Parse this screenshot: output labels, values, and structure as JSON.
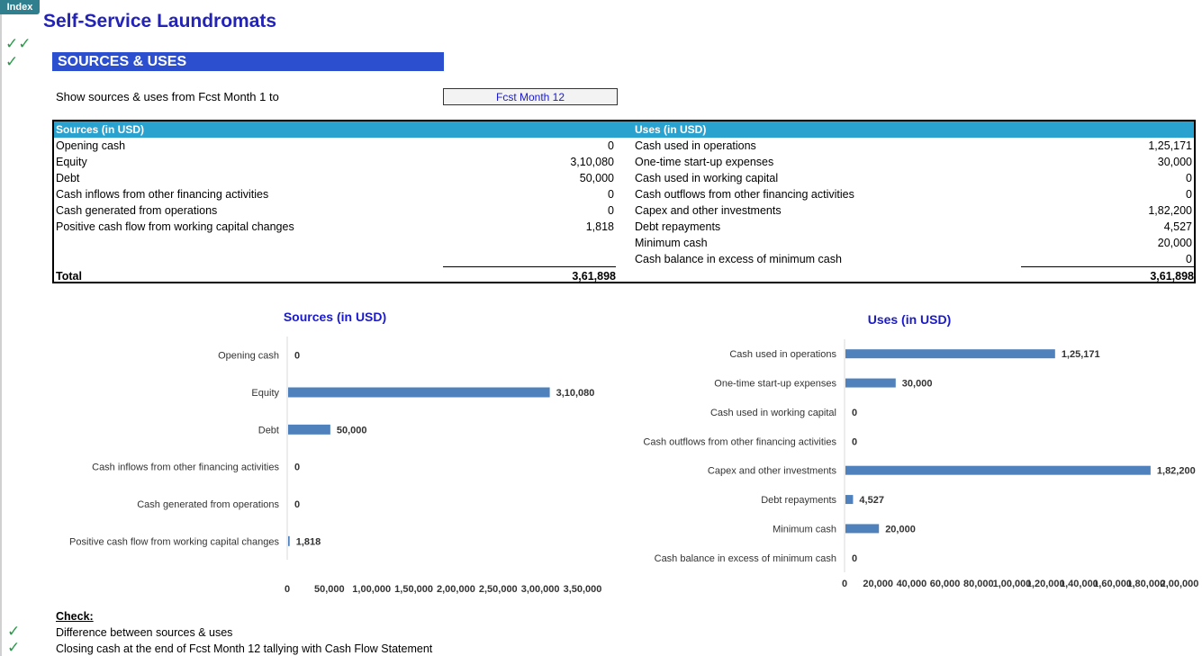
{
  "index_tab": "Index",
  "title": "Self-Service Laundromats",
  "section": "SOURCES & USES",
  "period": {
    "label": "Show sources & uses from Fcst Month 1 to",
    "value": "Fcst Month 12"
  },
  "colors": {
    "header_bar": "#2aa2cf",
    "section_bar": "#2c4fd0",
    "bar": "#4f81bd",
    "title": "#2323b6",
    "tick": "#2a9a4a"
  },
  "sources": {
    "header": "Sources (in USD)",
    "rows": [
      {
        "label": "Opening cash",
        "value": "0"
      },
      {
        "label": "Equity",
        "value": "3,10,080"
      },
      {
        "label": "Debt",
        "value": "50,000"
      },
      {
        "label": "Cash inflows from other financing activities",
        "value": "0"
      },
      {
        "label": "Cash generated from operations",
        "value": "0"
      },
      {
        "label": "Positive cash flow from working capital changes",
        "value": "1,818"
      }
    ],
    "total_label": "Total",
    "total_value": "3,61,898"
  },
  "uses": {
    "header": "Uses (in USD)",
    "rows": [
      {
        "label": "Cash used in operations",
        "value": "1,25,171"
      },
      {
        "label": "One-time start-up expenses",
        "value": "30,000"
      },
      {
        "label": "Cash used in working capital",
        "value": "0"
      },
      {
        "label": "Cash outflows from other  financing activities",
        "value": "0"
      },
      {
        "label": "Capex and other investments",
        "value": "1,82,200"
      },
      {
        "label": "Debt repayments",
        "value": "4,527"
      },
      {
        "label": "Minimum cash",
        "value": "20,000"
      },
      {
        "label": "Cash balance in excess of minimum cash",
        "value": "0"
      }
    ],
    "total_value": "3,61,898"
  },
  "chart_data": [
    {
      "type": "bar",
      "orientation": "horizontal",
      "title": "Sources (in USD)",
      "categories": [
        "Opening cash",
        "Equity",
        "Debt",
        "Cash inflows from other financing activities",
        "Cash generated from operations",
        "Positive cash flow from working capital changes"
      ],
      "values": [
        0,
        310080,
        50000,
        0,
        0,
        1818
      ],
      "data_labels": [
        "0",
        "3,10,080",
        "50,000",
        "0",
        "0",
        "1,818"
      ],
      "xlim": [
        0,
        350000
      ],
      "xticks": [
        "0",
        "50,000",
        "1,00,000",
        "1,50,000",
        "2,00,000",
        "2,50,000",
        "3,00,000",
        "3,50,000"
      ],
      "grid": false,
      "color": "#4f81bd"
    },
    {
      "type": "bar",
      "orientation": "horizontal",
      "title": "Uses (in USD)",
      "categories": [
        "Cash used in operations",
        "One-time start-up expenses",
        "Cash used in working capital",
        "Cash outflows from other  financing activities",
        "Capex and other investments",
        "Debt repayments",
        "Minimum cash",
        "Cash balance in excess of minimum cash"
      ],
      "values": [
        125171,
        30000,
        0,
        0,
        182200,
        4527,
        20000,
        0
      ],
      "data_labels": [
        "1,25,171",
        "30,000",
        "0",
        "0",
        "1,82,200",
        "4,527",
        "20,000",
        "0"
      ],
      "xlim": [
        0,
        200000
      ],
      "xticks": [
        "0",
        "20,000",
        "40,000",
        "60,000",
        "80,000",
        "1,00,000",
        "1,20,000",
        "1,40,000",
        "1,60,000",
        "1,80,000",
        "2,00,000"
      ],
      "grid": false,
      "color": "#4f81bd"
    }
  ],
  "check": {
    "label": "Check:",
    "items": [
      "Difference between sources & uses",
      "Closing cash at the end of Fcst Month 12 tallying with Cash Flow Statement"
    ]
  }
}
